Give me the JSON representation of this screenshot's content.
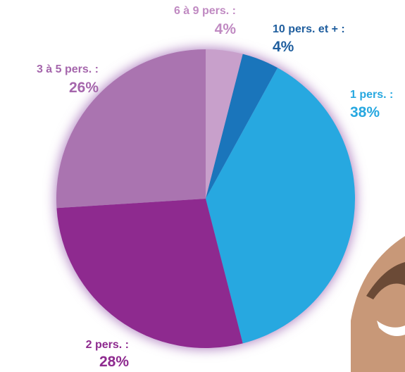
{
  "chart_data": {
    "type": "pie",
    "categories": [
      "6 à 9 pers. :",
      "10 pers. et + :",
      "1 pers. :",
      "2 pers. :",
      "3 à 5 pers. :"
    ],
    "values": [
      4,
      4,
      38,
      28,
      26
    ],
    "value_labels": [
      "4%",
      "4%",
      "38%",
      "28%",
      "26%"
    ],
    "colors": [
      "#c8a0cb",
      "#1a75bb",
      "#27a8e0",
      "#8e2a8f",
      "#aa74b0"
    ],
    "label_colors": [
      "#c08ac2",
      "#1f5e9e",
      "#27a8e0",
      "#8e2a8f",
      "#a566ac"
    ]
  }
}
